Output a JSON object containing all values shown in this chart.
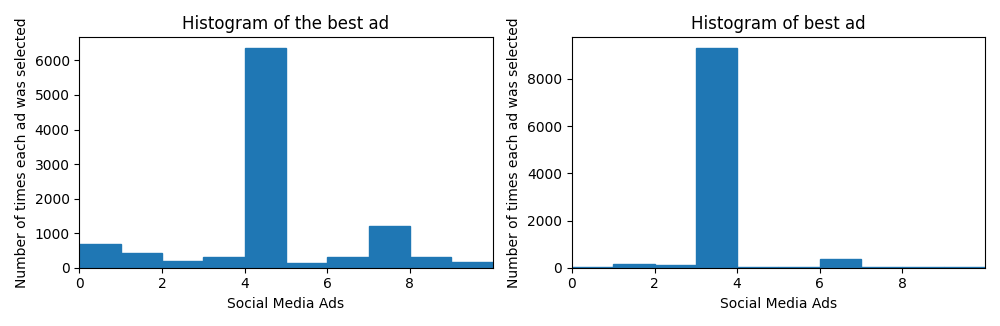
{
  "left": {
    "title": "Histogram of the best ad",
    "xlabel": "Social Media Ads",
    "ylabel": "Number of times each ad was selected",
    "bar_color": "#1f77b4",
    "counts": [
      700,
      420,
      200,
      300,
      6350,
      150,
      300,
      1200,
      300,
      180
    ],
    "n_ads": 10
  },
  "right": {
    "title": "Histogram of best ad",
    "xlabel": "Social Media Ads",
    "ylabel": "Number of times each ad was selected",
    "bar_color": "#1f77b4",
    "counts": [
      10,
      150,
      100,
      9300,
      10,
      10,
      390,
      10,
      30,
      10
    ],
    "n_ads": 10
  },
  "figsize": [
    10.0,
    3.26
  ],
  "dpi": 100
}
